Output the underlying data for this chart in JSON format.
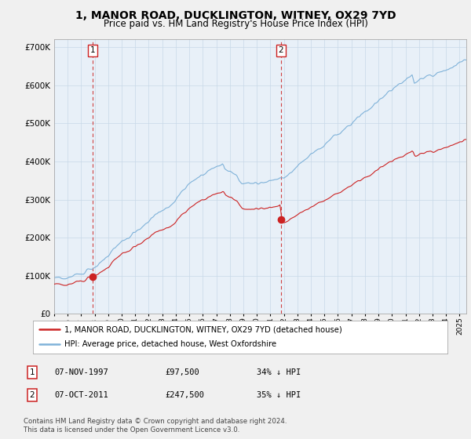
{
  "title": "1, MANOR ROAD, DUCKLINGTON, WITNEY, OX29 7YD",
  "subtitle": "Price paid vs. HM Land Registry's House Price Index (HPI)",
  "title_fontsize": 10,
  "subtitle_fontsize": 8.5,
  "hpi_color": "#7fb2d9",
  "price_color": "#cc2222",
  "bg_color": "#f0f0f0",
  "plot_bg": "#e8f0f8",
  "ylim": [
    0,
    720000
  ],
  "yticks": [
    0,
    100000,
    200000,
    300000,
    400000,
    500000,
    600000,
    700000
  ],
  "purchase1": {
    "date": "07-NOV-1997",
    "price": 97500,
    "pct": "34%",
    "label": "1"
  },
  "purchase2": {
    "date": "07-OCT-2011",
    "price": 247500,
    "pct": "35%",
    "label": "2"
  },
  "purchase1_x": 1997.85,
  "purchase2_x": 2011.77,
  "legend_property": "1, MANOR ROAD, DUCKLINGTON, WITNEY, OX29 7YD (detached house)",
  "legend_hpi": "HPI: Average price, detached house, West Oxfordshire",
  "footnote": "Contains HM Land Registry data © Crown copyright and database right 2024.\nThis data is licensed under the Open Government Licence v3.0.",
  "xmin": 1995.0,
  "xmax": 2025.5
}
